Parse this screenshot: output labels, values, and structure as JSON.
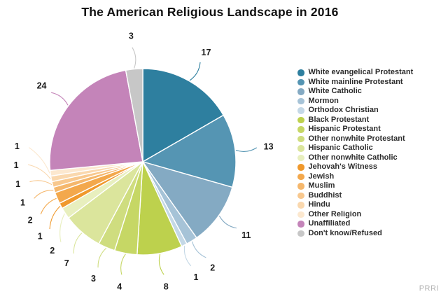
{
  "watermark": "PRRI",
  "chart_data": {
    "type": "pie",
    "title": "The American Religious Landscape in 2016",
    "unit": "percent",
    "start_angle": "top",
    "direction": "clockwise",
    "legend_position": "right",
    "value_labels": "outside-with-leader-lines",
    "slices": [
      {
        "label": "White evangelical Protestant",
        "value": 17,
        "color": "#2e7f9f"
      },
      {
        "label": "White mainline Protestant",
        "value": 13,
        "color": "#5595b3"
      },
      {
        "label": "White Catholic",
        "value": 11,
        "color": "#84aac3"
      },
      {
        "label": "Mormon",
        "value": 2,
        "color": "#a6c3d7"
      },
      {
        "label": "Orthodox Christian",
        "value": 1,
        "color": "#c4d8e6"
      },
      {
        "label": "Black Protestant",
        "value": 8,
        "color": "#bdd14d"
      },
      {
        "label": "Hispanic Protestant",
        "value": 4,
        "color": "#c6d765"
      },
      {
        "label": "Other nonwhite Protestant",
        "value": 3,
        "color": "#cfdd7f"
      },
      {
        "label": "Hispanic Catholic",
        "value": 7,
        "color": "#dbe59c"
      },
      {
        "label": "Other nonwhite Catholic",
        "value": 2,
        "color": "#e8efbe"
      },
      {
        "label": "Jehovah's Witness",
        "value": 1,
        "color": "#f0992c"
      },
      {
        "label": "Jewish",
        "value": 2,
        "color": "#f3a84c"
      },
      {
        "label": "Muslim",
        "value": 1,
        "color": "#f5b76c"
      },
      {
        "label": "Buddhist",
        "value": 1,
        "color": "#f8c88e"
      },
      {
        "label": "Hindu",
        "value": 1,
        "color": "#fad8ae"
      },
      {
        "label": "Other Religion",
        "value": 1,
        "color": "#fce8cf"
      },
      {
        "label": "Unaffiliated",
        "value": 24,
        "color": "#c484b9"
      },
      {
        "label": "Don't know/Refused",
        "value": 3,
        "color": "#c7c7c7"
      }
    ]
  }
}
